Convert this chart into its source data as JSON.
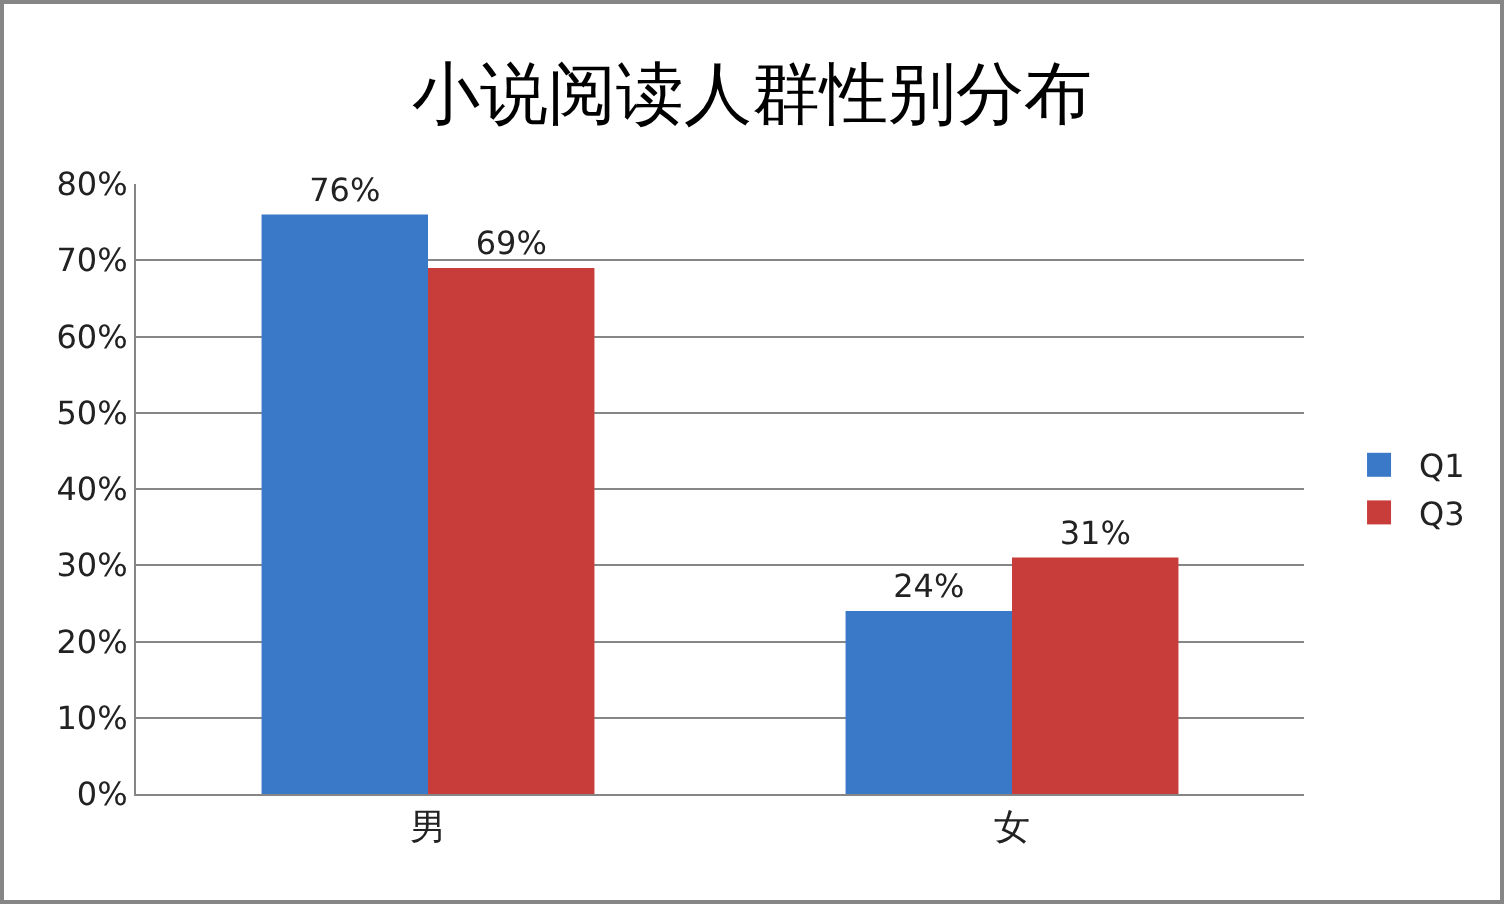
{
  "chart_data": {
    "type": "bar",
    "title": "小说阅读人群性别分布",
    "categories": [
      "男",
      "女"
    ],
    "series": [
      {
        "name": "Q1",
        "color": "#3a78c8",
        "values": [
          76,
          24
        ],
        "value_labels": [
          "76%",
          "24%"
        ]
      },
      {
        "name": "Q3",
        "color": "#c83d3a",
        "values": [
          69,
          31
        ],
        "value_labels": [
          "69%",
          "31%"
        ]
      }
    ],
    "ylim": [
      0,
      80
    ],
    "yticks": [
      {
        "value": 0,
        "label": "0%"
      },
      {
        "value": 10,
        "label": "10%"
      },
      {
        "value": 20,
        "label": "20%"
      },
      {
        "value": 30,
        "label": "30%"
      },
      {
        "value": 40,
        "label": "40%"
      },
      {
        "value": 50,
        "label": "50%"
      },
      {
        "value": 60,
        "label": "60%"
      },
      {
        "value": 70,
        "label": "70%"
      },
      {
        "value": 80,
        "label": "80%"
      }
    ],
    "grid": "y",
    "legend": "right"
  }
}
